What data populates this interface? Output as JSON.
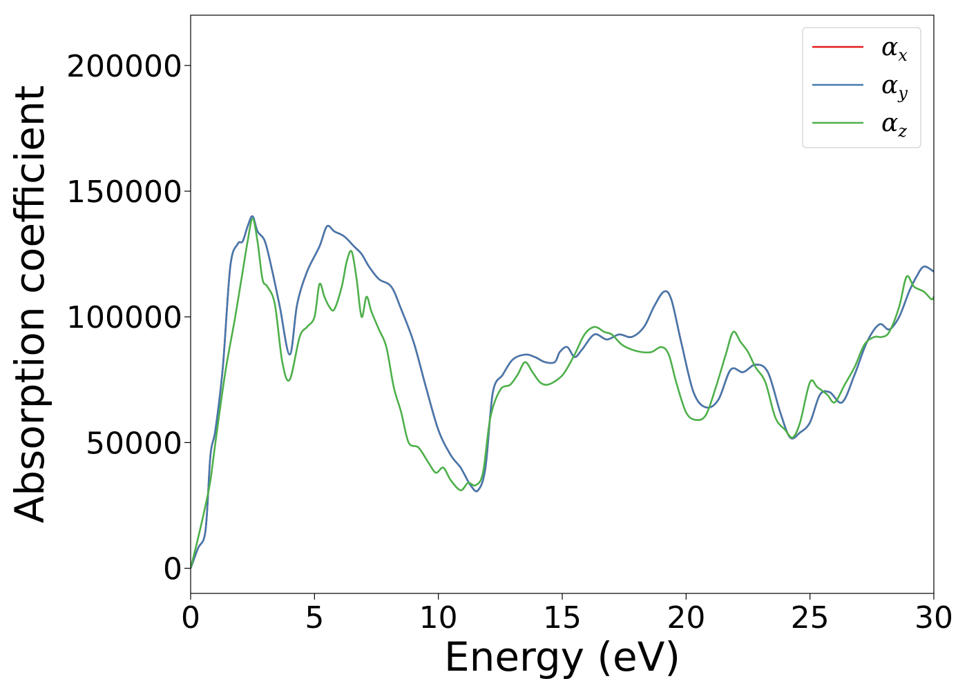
{
  "chart_data": {
    "type": "line",
    "xlabel": "Energy (eV)",
    "ylabel": "Absorption coefficient",
    "xlim": [
      0,
      30
    ],
    "ylim": [
      -10000,
      220000
    ],
    "xticks": [
      0,
      5,
      10,
      15,
      20,
      25,
      30
    ],
    "yticks": [
      0,
      50000,
      100000,
      150000,
      200000
    ],
    "grid": false,
    "legend_position": "top-right",
    "series": [
      {
        "name": "α_x",
        "name_base": "α",
        "name_sub": "x",
        "color": "#e41a1c",
        "x": [
          0,
          0.3,
          0.6,
          0.8,
          1.0,
          1.3,
          1.6,
          1.9,
          2.1,
          2.3,
          2.5,
          2.7,
          3.0,
          3.3,
          3.6,
          4.0,
          4.3,
          4.7,
          5.2,
          5.5,
          5.8,
          6.2,
          6.6,
          6.9,
          7.2,
          7.6,
          8.1,
          8.5,
          9.0,
          9.5,
          10.0,
          10.5,
          10.9,
          11.3,
          11.6,
          11.9,
          12.2,
          12.6,
          13.0,
          13.5,
          13.9,
          14.3,
          14.7,
          14.9,
          15.2,
          15.5,
          15.8,
          16.3,
          16.8,
          17.3,
          17.8,
          18.3,
          18.7,
          19.1,
          19.4,
          19.8,
          20.3,
          20.8,
          21.3,
          21.8,
          22.3,
          22.8,
          23.3,
          23.8,
          24.2,
          24.6,
          25.0,
          25.4,
          25.8,
          26.3,
          26.8,
          27.3,
          27.8,
          28.2,
          28.6,
          29.0,
          29.3,
          29.6,
          30.0
        ],
        "y": [
          0,
          8000,
          15000,
          45000,
          55000,
          80000,
          120000,
          129000,
          130000,
          136000,
          140000,
          134000,
          130000,
          118000,
          104000,
          85000,
          105000,
          118000,
          128000,
          136000,
          134000,
          132000,
          128000,
          125000,
          120000,
          115000,
          112000,
          103000,
          90000,
          72000,
          55000,
          45000,
          40000,
          33000,
          31000,
          40000,
          70000,
          77000,
          83000,
          85000,
          84000,
          82000,
          82000,
          86000,
          88000,
          84000,
          87000,
          93000,
          91000,
          93000,
          92000,
          96000,
          104000,
          110000,
          107000,
          90000,
          70000,
          64000,
          67000,
          79000,
          78000,
          81000,
          78000,
          62000,
          52000,
          54000,
          58000,
          69000,
          70000,
          66000,
          77000,
          90000,
          97000,
          95000,
          100000,
          110000,
          116000,
          120000,
          118000
        ]
      },
      {
        "name": "α_y",
        "name_base": "α",
        "name_sub": "y",
        "color": "#4479ae",
        "x": [
          0,
          0.3,
          0.6,
          0.8,
          1.0,
          1.3,
          1.6,
          1.9,
          2.1,
          2.3,
          2.5,
          2.7,
          3.0,
          3.3,
          3.6,
          4.0,
          4.3,
          4.7,
          5.2,
          5.5,
          5.8,
          6.2,
          6.6,
          6.9,
          7.2,
          7.6,
          8.1,
          8.5,
          9.0,
          9.5,
          10.0,
          10.5,
          10.9,
          11.3,
          11.6,
          11.9,
          12.2,
          12.6,
          13.0,
          13.5,
          13.9,
          14.3,
          14.7,
          14.9,
          15.2,
          15.5,
          15.8,
          16.3,
          16.8,
          17.3,
          17.8,
          18.3,
          18.7,
          19.1,
          19.4,
          19.8,
          20.3,
          20.8,
          21.3,
          21.8,
          22.3,
          22.8,
          23.3,
          23.8,
          24.2,
          24.6,
          25.0,
          25.4,
          25.8,
          26.3,
          26.8,
          27.3,
          27.8,
          28.2,
          28.6,
          29.0,
          29.3,
          29.6,
          30.0
        ],
        "y": [
          0,
          8000,
          15000,
          45000,
          55000,
          80000,
          120000,
          129000,
          130000,
          136000,
          140000,
          134000,
          130000,
          118000,
          104000,
          85000,
          105000,
          118000,
          128000,
          136000,
          134000,
          132000,
          128000,
          125000,
          120000,
          115000,
          112000,
          103000,
          90000,
          72000,
          55000,
          45000,
          40000,
          33000,
          31000,
          40000,
          70000,
          77000,
          83000,
          85000,
          84000,
          82000,
          82000,
          86000,
          88000,
          84000,
          87000,
          93000,
          91000,
          93000,
          92000,
          96000,
          104000,
          110000,
          107000,
          90000,
          70000,
          64000,
          67000,
          79000,
          78000,
          81000,
          78000,
          62000,
          52000,
          54000,
          58000,
          69000,
          70000,
          66000,
          77000,
          90000,
          97000,
          95000,
          100000,
          110000,
          116000,
          120000,
          118000
        ]
      },
      {
        "name": "α_z",
        "name_base": "α",
        "name_sub": "z",
        "color": "#4daf4a",
        "x": [
          0,
          0.3,
          0.6,
          0.8,
          1.0,
          1.4,
          1.8,
          2.1,
          2.3,
          2.5,
          2.7,
          2.9,
          3.1,
          3.4,
          3.7,
          4.0,
          4.4,
          4.7,
          5.0,
          5.2,
          5.4,
          5.6,
          5.8,
          6.1,
          6.3,
          6.5,
          6.7,
          6.9,
          7.1,
          7.3,
          7.6,
          7.9,
          8.2,
          8.5,
          8.8,
          9.2,
          9.6,
          9.9,
          10.2,
          10.5,
          10.9,
          11.2,
          11.5,
          11.8,
          12.1,
          12.5,
          12.9,
          13.2,
          13.5,
          13.8,
          14.1,
          14.4,
          14.8,
          15.1,
          15.5,
          15.9,
          16.3,
          16.7,
          17.0,
          17.4,
          17.8,
          18.2,
          18.6,
          19.0,
          19.3,
          19.6,
          20.0,
          20.4,
          20.8,
          21.2,
          21.6,
          21.9,
          22.2,
          22.5,
          22.8,
          23.2,
          23.6,
          24.0,
          24.3,
          24.6,
          25.0,
          25.3,
          25.7,
          26.0,
          26.4,
          26.8,
          27.2,
          27.6,
          27.9,
          28.2,
          28.6,
          28.9,
          29.2,
          29.6,
          29.9,
          30.0
        ],
        "y": [
          0,
          12000,
          25000,
          35000,
          50000,
          78000,
          100000,
          118000,
          130000,
          139000,
          130000,
          115000,
          112000,
          105000,
          82000,
          75000,
          92000,
          96000,
          100000,
          113000,
          108000,
          104000,
          103000,
          112000,
          122000,
          126000,
          115000,
          100000,
          108000,
          102000,
          95000,
          88000,
          72000,
          62000,
          50000,
          48000,
          42000,
          38000,
          40000,
          35000,
          31000,
          34000,
          33000,
          38000,
          60000,
          71000,
          73000,
          77000,
          82000,
          78000,
          74000,
          73000,
          75000,
          78000,
          85000,
          93000,
          96000,
          94000,
          93000,
          89000,
          87000,
          86000,
          86000,
          88000,
          85000,
          74000,
          62000,
          59000,
          61000,
          72000,
          85000,
          94000,
          90000,
          86000,
          80000,
          74000,
          60000,
          55000,
          52000,
          58000,
          74000,
          72000,
          69000,
          66000,
          73000,
          80000,
          89000,
          92000,
          92000,
          94000,
          104000,
          116000,
          112000,
          110000,
          107000,
          108000
        ]
      }
    ]
  }
}
